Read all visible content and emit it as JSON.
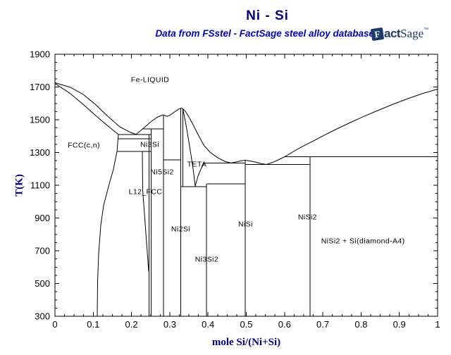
{
  "header": {
    "title": "Ni - Si",
    "subtitle": "Data from FSstel - FactSage steel alloy databases"
  },
  "logo": {
    "f": "F",
    "fact": "act",
    "sage": "Sage",
    "tm": "™"
  },
  "colors": {
    "title": "#00008B",
    "subtitle": "#0000CD",
    "axis_title": "#00008B",
    "logo": "#1E3A68",
    "line": "#000000",
    "tick_label": "#000000",
    "background": "#FFFFFF"
  },
  "chart_data": {
    "type": "line",
    "title": "Ni - Si",
    "xlabel": "mole Si/(Ni+Si)",
    "ylabel": "T(K)",
    "xlim": [
      0,
      1
    ],
    "ylim": [
      300,
      1900
    ],
    "grid": false,
    "x_axis": {
      "title": "mole Si/(Ni+Si)",
      "major_tick_values": [
        0,
        0.1,
        0.2,
        0.3,
        0.4,
        0.5,
        0.6,
        0.7,
        0.8,
        0.9,
        1
      ],
      "major_tick_labels": [
        "0",
        "0.1",
        "0.2",
        "0.3",
        "0.4",
        "0.5",
        "0.6",
        "0.7",
        "0.8",
        "0.9",
        "1"
      ],
      "minor_divisions_per_major": 4
    },
    "y_axis": {
      "title": "T(K)",
      "major_tick_values": [
        1900,
        1700,
        1500,
        1300,
        1100,
        900,
        700,
        500,
        300
      ],
      "major_tick_labels": [
        "1900",
        "1700",
        "1500",
        "1300",
        "1100",
        "900",
        "700",
        "500",
        "300"
      ],
      "minor_step": 50
    },
    "series": [
      {
        "name": "liquidus-ni-branch",
        "points": [
          [
            0,
            1726
          ],
          [
            0.0405,
            1698
          ],
          [
            0.0737,
            1655
          ],
          [
            0.105,
            1595
          ],
          [
            0.136,
            1526
          ],
          [
            0.169,
            1457
          ],
          [
            0.197,
            1423
          ],
          [
            0.2118,
            1410
          ]
        ]
      },
      {
        "name": "solidus-fcc",
        "points": [
          [
            0,
            1722
          ],
          [
            0.0405,
            1659
          ],
          [
            0.0773,
            1586
          ],
          [
            0.1105,
            1517
          ],
          [
            0.1362,
            1466
          ],
          [
            0.1547,
            1431
          ],
          [
            0.1657,
            1410
          ]
        ]
      },
      {
        "name": "fcc-solvus",
        "points": [
          [
            0.1657,
            1410
          ],
          [
            0.162,
            1306
          ],
          [
            0.1529,
            1199
          ],
          [
            0.14,
            1092
          ],
          [
            0.1271,
            976
          ],
          [
            0.1197,
            855
          ],
          [
            0.1142,
            683
          ],
          [
            0.1114,
            511
          ],
          [
            0.1105,
            300
          ]
        ]
      },
      {
        "name": "liquidus-ni3si-ni2si",
        "points": [
          [
            0.2118,
            1410
          ],
          [
            0.2247,
            1435
          ],
          [
            0.2376,
            1461
          ],
          [
            0.2523,
            1491
          ],
          [
            0.267,
            1515
          ],
          [
            0.2818,
            1530
          ],
          [
            0.2928,
            1521
          ],
          [
            0.3002,
            1527
          ],
          [
            0.313,
            1549
          ],
          [
            0.3241,
            1566
          ],
          [
            0.3315,
            1572
          ]
        ]
      },
      {
        "name": "liquidus-ni2si-si",
        "points": [
          [
            0.3315,
            1572
          ],
          [
            0.3407,
            1552
          ],
          [
            0.3499,
            1517
          ],
          [
            0.361,
            1470
          ],
          [
            0.3738,
            1410
          ],
          [
            0.3886,
            1345
          ],
          [
            0.4051,
            1302
          ],
          [
            0.4254,
            1268
          ],
          [
            0.4456,
            1244
          ],
          [
            0.4604,
            1236
          ],
          [
            0.4733,
            1242
          ],
          [
            0.4843,
            1248
          ],
          [
            0.4972,
            1253
          ],
          [
            0.5101,
            1248
          ],
          [
            0.523,
            1242
          ],
          [
            0.5377,
            1233
          ],
          [
            0.5525,
            1227
          ],
          [
            0.5672,
            1238
          ],
          [
            0.5838,
            1255
          ],
          [
            0.6004,
            1274
          ],
          [
            0.6206,
            1302
          ],
          [
            0.6446,
            1334
          ],
          [
            0.6722,
            1367
          ],
          [
            0.7035,
            1405
          ],
          [
            0.7366,
            1444
          ],
          [
            0.7716,
            1483
          ],
          [
            0.8084,
            1522
          ],
          [
            0.8453,
            1558
          ],
          [
            0.8839,
            1595
          ],
          [
            0.9226,
            1629
          ],
          [
            0.9613,
            1661
          ],
          [
            1,
            1687
          ]
        ]
      },
      {
        "name": "teta-left-boundary",
        "points": [
          [
            0.3343,
            1566
          ],
          [
            0.3407,
            1491
          ],
          [
            0.348,
            1392
          ],
          [
            0.3554,
            1285
          ],
          [
            0.3619,
            1186
          ],
          [
            0.3665,
            1094
          ]
        ]
      },
      {
        "name": "teta-right-boundary",
        "points": [
          [
            0.3665,
            1094
          ],
          [
            0.3738,
            1156
          ],
          [
            0.3821,
            1203
          ],
          [
            0.3877,
            1225
          ],
          [
            0.3904,
            1236
          ]
        ]
      },
      {
        "name": "eutectic-fcc-ni3si-1410",
        "points": [
          [
            0.1657,
            1410
          ],
          [
            0.2514,
            1410
          ]
        ]
      },
      {
        "name": "ni3si-transition-1384",
        "points": [
          [
            0.1657,
            1384
          ],
          [
            0.2514,
            1384
          ]
        ]
      },
      {
        "name": "ni3si-transition-1306",
        "points": [
          [
            0.162,
            1306
          ],
          [
            0.2514,
            1306
          ]
        ]
      },
      {
        "name": "peritectic-ni3si-1444",
        "points": [
          [
            0.23,
            1444
          ],
          [
            0.2836,
            1444
          ]
        ]
      },
      {
        "name": "tie-line-1255",
        "points": [
          [
            0.2836,
            1255
          ],
          [
            0.3287,
            1255
          ]
        ]
      },
      {
        "name": "eutectic-teta-nisi-1236",
        "points": [
          [
            0.3904,
            1236
          ],
          [
            0.4972,
            1236
          ]
        ]
      },
      {
        "name": "eutectic-nisi-nisi2-1227",
        "points": [
          [
            0.4972,
            1227
          ],
          [
            0.6667,
            1227
          ]
        ]
      },
      {
        "name": "eutectic-nisi2-si-1274",
        "points": [
          [
            0.6004,
            1274
          ],
          [
            1,
            1274
          ]
        ]
      },
      {
        "name": "eutectoid-teta-1092",
        "points": [
          [
            0.3287,
            1092
          ],
          [
            0.3968,
            1092
          ]
        ]
      },
      {
        "name": "eutectoid-teta-1109",
        "points": [
          [
            0.3968,
            1109
          ],
          [
            0.4972,
            1109
          ]
        ]
      },
      {
        "name": "ni3si-line-left",
        "points": [
          [
            0.2458,
            1410
          ],
          [
            0.2458,
            300
          ]
        ]
      },
      {
        "name": "ni3si-line-right",
        "points": [
          [
            0.2514,
            1444
          ],
          [
            0.2514,
            300
          ]
        ]
      },
      {
        "name": "l12-fcc-left-boundary",
        "points": [
          [
            0.2284,
            1306
          ],
          [
            0.2293,
            1070
          ],
          [
            0.245,
            575
          ]
        ]
      },
      {
        "name": "ni5si2-line",
        "points": [
          [
            0.2836,
            1530
          ],
          [
            0.2836,
            300
          ]
        ]
      },
      {
        "name": "ni2si-line-left",
        "points": [
          [
            0.3287,
            1570
          ],
          [
            0.3287,
            300
          ]
        ]
      },
      {
        "name": "ni2si-line-right",
        "points": [
          [
            0.3343,
            1566
          ],
          [
            0.3343,
            1092
          ]
        ]
      },
      {
        "name": "ni3si2-line",
        "points": [
          [
            0.3959,
            1109
          ],
          [
            0.3959,
            300
          ]
        ]
      },
      {
        "name": "nisi-line",
        "points": [
          [
            0.4972,
            1253
          ],
          [
            0.4972,
            300
          ]
        ]
      },
      {
        "name": "nisi2-line",
        "points": [
          [
            0.6667,
            1274
          ],
          [
            0.6667,
            300
          ]
        ]
      }
    ],
    "region_labels": [
      {
        "text": "Fe-LIQUID",
        "x": 0.2486,
        "T": 1745
      },
      {
        "text": "FCC(c,n)",
        "x": 0.0755,
        "T": 1345
      },
      {
        "text": "Ni3Si",
        "x": 0.2477,
        "T": 1350
      },
      {
        "text": "Ni5Si2",
        "x": 0.28,
        "T": 1182
      },
      {
        "text": "L12_FCC",
        "x": 0.2366,
        "T": 1061
      },
      {
        "text": "TETA",
        "x": 0.371,
        "T": 1229
      },
      {
        "text": "Ni2Si",
        "x": 0.3287,
        "T": 833
      },
      {
        "text": "Ni3Si2",
        "x": 0.3968,
        "T": 648
      },
      {
        "text": "NiSi",
        "x": 0.498,
        "T": 864
      },
      {
        "text": "NiSi2",
        "x": 0.66,
        "T": 907
      },
      {
        "text": "NiSi2 + Si(diamond-A4)",
        "x": 0.805,
        "T": 760
      }
    ]
  }
}
